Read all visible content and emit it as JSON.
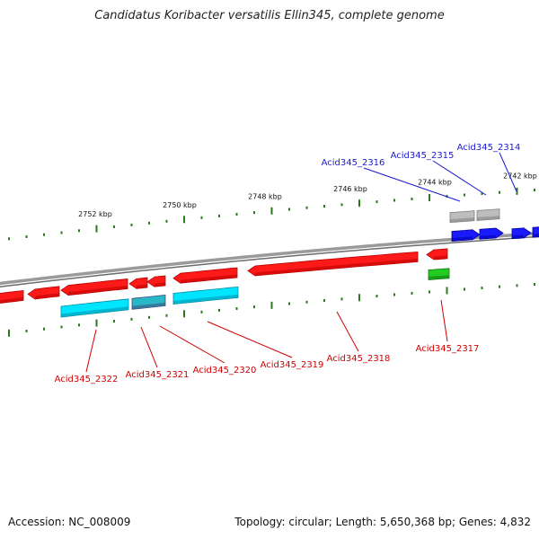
{
  "title": "Candidatus Koribacter versatilis Ellin345, complete genome",
  "accession": "Accession: NC_008009",
  "summary": "Topology: circular; Length: 5,650,368 bp; Genes: 4,832",
  "colors": {
    "forward_cds": "#ff0000",
    "reverse_rna": "#1a1aff",
    "cyan_feature": "#00e5ff",
    "green_feature": "#22cc22",
    "grey_feature": "#aaaaaa",
    "backbone": "#888888",
    "tick": "#2a7a1a",
    "reverse_label": "#1a1ad0",
    "forward_label": "#d00000"
  },
  "scale": {
    "tick_labels": [
      "2752 kbp",
      "2750 kbp",
      "2748 kbp",
      "2746 kbp",
      "2744 kbp",
      "2742 kbp"
    ]
  },
  "gene_labels": {
    "top": [
      "Acid345_2316",
      "Acid345_2315",
      "Acid345_2314"
    ],
    "bottom": [
      "Acid345_2322",
      "Acid345_2321",
      "Acid345_2320",
      "Acid345_2319",
      "Acid345_2318",
      "Acid345_2317"
    ]
  }
}
